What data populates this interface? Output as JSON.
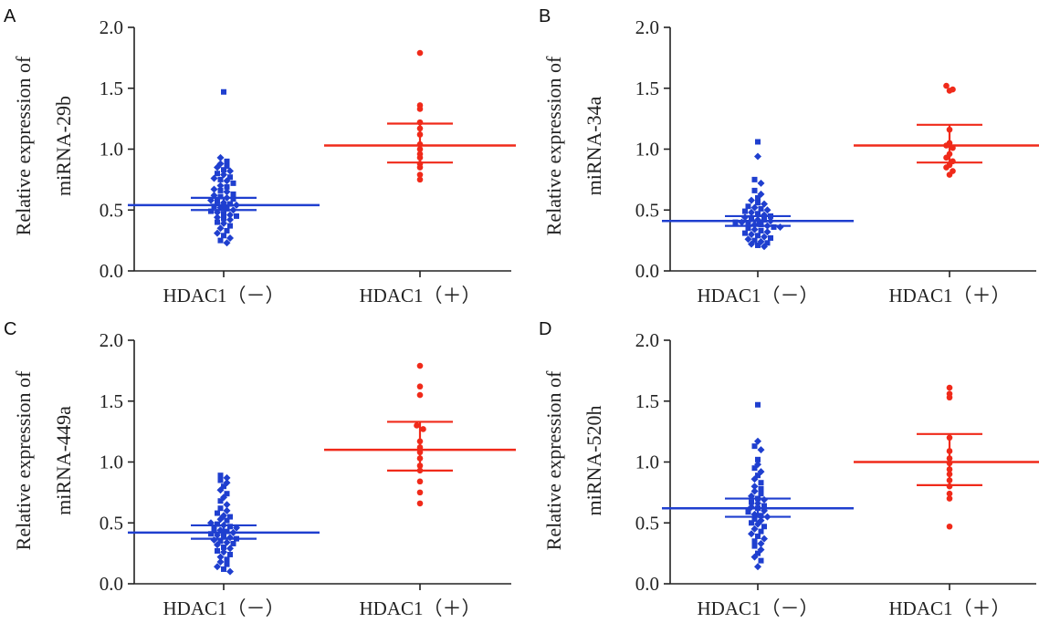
{
  "figure": {
    "colors": {
      "negative": "#1f3fcf",
      "positive": "#f02a1a",
      "axis": "#222222"
    }
  },
  "chart_data": [
    {
      "type": "scatter",
      "panel": "A",
      "categories": [
        "HDAC1（－）",
        "HDAC1（＋）"
      ],
      "ylabel_line1": "Relative expression of",
      "ylabel_line2": "miRNA-29b",
      "ylim": [
        0,
        2.0
      ],
      "yticks": [
        "0.0",
        "0.5",
        "1.0",
        "1.5",
        "2.0"
      ],
      "series": [
        {
          "values": [
            1.47,
            0.93,
            0.9,
            0.88,
            0.86,
            0.85,
            0.83,
            0.82,
            0.8,
            0.79,
            0.77,
            0.76,
            0.75,
            0.74,
            0.72,
            0.7,
            0.69,
            0.67,
            0.66,
            0.65,
            0.63,
            0.62,
            0.61,
            0.6,
            0.59,
            0.58,
            0.57,
            0.56,
            0.55,
            0.54,
            0.53,
            0.52,
            0.51,
            0.5,
            0.49,
            0.48,
            0.47,
            0.46,
            0.45,
            0.44,
            0.43,
            0.42,
            0.4,
            0.39,
            0.37,
            0.35,
            0.33,
            0.31,
            0.29,
            0.27,
            0.25,
            0.23
          ],
          "mean": 0.54,
          "err_low": 0.5,
          "err_high": 0.6
        },
        {
          "values": [
            1.79,
            1.36,
            1.33,
            1.22,
            1.17,
            1.12,
            1.04,
            1.0,
            0.96,
            0.93,
            0.88,
            0.85,
            0.79,
            0.75
          ],
          "mean": 1.03,
          "err_low": 0.89,
          "err_high": 1.21
        }
      ]
    },
    {
      "type": "scatter",
      "panel": "B",
      "categories": [
        "HDAC1（－）",
        "HDAC1（＋）"
      ],
      "ylabel_line1": "Relative expression of",
      "ylabel_line2": "miRNA-34a",
      "ylim": [
        0,
        2.0
      ],
      "yticks": [
        "0.0",
        "0.5",
        "1.0",
        "1.5",
        "2.0"
      ],
      "series": [
        {
          "values": [
            1.06,
            0.94,
            0.75,
            0.72,
            0.66,
            0.63,
            0.6,
            0.58,
            0.56,
            0.55,
            0.53,
            0.52,
            0.51,
            0.5,
            0.49,
            0.48,
            0.47,
            0.46,
            0.45,
            0.44,
            0.43,
            0.42,
            0.42,
            0.41,
            0.4,
            0.4,
            0.39,
            0.38,
            0.38,
            0.37,
            0.36,
            0.36,
            0.35,
            0.34,
            0.33,
            0.32,
            0.31,
            0.3,
            0.29,
            0.28,
            0.27,
            0.26,
            0.25,
            0.24,
            0.23,
            0.22,
            0.21,
            0.2
          ],
          "mean": 0.41,
          "err_low": 0.37,
          "err_high": 0.45
        },
        {
          "values": [
            1.52,
            1.49,
            1.48,
            1.16,
            1.05,
            1.03,
            1.01,
            0.96,
            0.93,
            0.9,
            0.87,
            0.85,
            0.82,
            0.79
          ],
          "mean": 1.03,
          "err_low": 0.89,
          "err_high": 1.2
        }
      ]
    },
    {
      "type": "scatter",
      "panel": "C",
      "categories": [
        "HDAC1（－）",
        "HDAC1（＋）"
      ],
      "ylabel_line1": "Relative expression of",
      "ylabel_line2": "miRNA-449a",
      "ylim": [
        0,
        2.0
      ],
      "yticks": [
        "0.0",
        "0.5",
        "1.0",
        "1.5",
        "2.0"
      ],
      "series": [
        {
          "values": [
            0.89,
            0.87,
            0.85,
            0.83,
            0.8,
            0.77,
            0.74,
            0.71,
            0.68,
            0.65,
            0.62,
            0.6,
            0.58,
            0.56,
            0.55,
            0.53,
            0.52,
            0.5,
            0.49,
            0.48,
            0.47,
            0.46,
            0.45,
            0.44,
            0.43,
            0.42,
            0.41,
            0.4,
            0.39,
            0.38,
            0.37,
            0.36,
            0.35,
            0.34,
            0.33,
            0.32,
            0.3,
            0.29,
            0.27,
            0.26,
            0.24,
            0.22,
            0.2,
            0.18,
            0.16,
            0.14,
            0.12,
            0.1
          ],
          "mean": 0.42,
          "err_low": 0.37,
          "err_high": 0.48
        },
        {
          "values": [
            1.79,
            1.62,
            1.55,
            1.3,
            1.27,
            1.17,
            1.12,
            1.08,
            1.03,
            0.97,
            0.93,
            0.84,
            0.75,
            0.66
          ],
          "mean": 1.1,
          "err_low": 0.93,
          "err_high": 1.33
        }
      ]
    },
    {
      "type": "scatter",
      "panel": "D",
      "categories": [
        "HDAC1（－）",
        "HDAC1（＋）"
      ],
      "ylabel_line1": "Relative expression of",
      "ylabel_line2": "miRNA-520h",
      "ylim": [
        0,
        2.0
      ],
      "yticks": [
        "0.0",
        "0.5",
        "1.0",
        "1.5",
        "2.0"
      ],
      "series": [
        {
          "values": [
            1.47,
            1.17,
            1.13,
            1.1,
            1.02,
            0.98,
            0.95,
            0.92,
            0.89,
            0.86,
            0.83,
            0.8,
            0.78,
            0.76,
            0.74,
            0.72,
            0.7,
            0.69,
            0.67,
            0.66,
            0.64,
            0.63,
            0.62,
            0.6,
            0.59,
            0.57,
            0.56,
            0.55,
            0.53,
            0.52,
            0.5,
            0.49,
            0.47,
            0.45,
            0.43,
            0.41,
            0.39,
            0.37,
            0.35,
            0.33,
            0.31,
            0.28,
            0.25,
            0.22,
            0.19,
            0.14
          ],
          "mean": 0.62,
          "err_low": 0.55,
          "err_high": 0.7
        },
        {
          "values": [
            1.61,
            1.56,
            1.53,
            1.2,
            1.09,
            1.03,
            0.99,
            0.94,
            0.9,
            0.85,
            0.8,
            0.74,
            0.7,
            0.47
          ],
          "mean": 1.0,
          "err_low": 0.81,
          "err_high": 1.23
        }
      ]
    }
  ]
}
